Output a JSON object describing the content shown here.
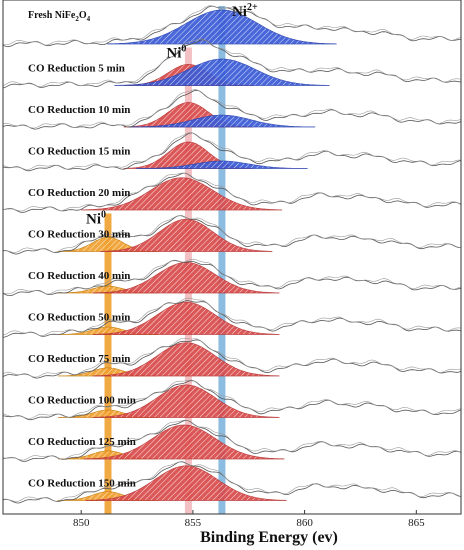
{
  "chart_data": {
    "type": "line",
    "xlabel": "Binding Energy (ev)",
    "xlim": [
      846.5,
      867
    ],
    "xticks": [
      850,
      855,
      860,
      865
    ],
    "xtick_labels": [
      "850",
      "855",
      "860",
      "865"
    ],
    "markers": [
      {
        "name": "Ni0",
        "label_main": "Ni",
        "label_sup": "0",
        "x": 851.2,
        "color": "#f0a030",
        "from_spectrum": 5
      },
      {
        "name": "Ni0",
        "label_main": "Ni",
        "label_sup": "0",
        "x": 854.8,
        "color": "#f2b9bd",
        "from_spectrum": 1
      },
      {
        "name": "Ni2+",
        "label_main": "Ni",
        "label_sup": "2+",
        "x": 856.3,
        "color": "#7fb6de",
        "from_spectrum": 0
      }
    ],
    "colors": {
      "ni2": "#3a5bd6",
      "ni0": "#d94a4a",
      "niO": "#f0a030",
      "curve": "#555555"
    },
    "spectra": [
      {
        "label_main": "Fresh NiFe",
        "label_sub1": "2",
        "label_mid": "O",
        "label_sub2": "4",
        "label": "Fresh NiFe2O4",
        "peaks": [
          {
            "type": "ni2",
            "center": 856.3,
            "height": 1.0,
            "width": 1.6
          }
        ]
      },
      {
        "label": "CO Reduction 5 min",
        "peaks": [
          {
            "type": "ni0",
            "center": 854.8,
            "height": 0.62,
            "width": 0.9
          },
          {
            "type": "ni2",
            "center": 856.3,
            "height": 0.78,
            "width": 1.5
          }
        ]
      },
      {
        "label": "CO Reduction 10 min",
        "peaks": [
          {
            "type": "ni0",
            "center": 854.8,
            "height": 0.72,
            "width": 0.9
          },
          {
            "type": "ni2",
            "center": 856.3,
            "height": 0.35,
            "width": 1.3
          }
        ]
      },
      {
        "label": "CO Reduction 15 min",
        "peaks": [
          {
            "type": "ni0",
            "center": 854.8,
            "height": 0.78,
            "width": 0.9
          },
          {
            "type": "ni2",
            "center": 856.3,
            "height": 0.22,
            "width": 1.2
          }
        ]
      },
      {
        "label": "CO Reduction 20 min",
        "peaks": [
          {
            "type": "ni0",
            "center": 854.5,
            "height": 0.95,
            "width": 1.4
          }
        ]
      },
      {
        "label": "CO Reduction 30 min",
        "peaks": [
          {
            "type": "niO",
            "center": 851.2,
            "height": 0.42,
            "width": 0.7
          },
          {
            "type": "ni0",
            "center": 854.7,
            "height": 0.95,
            "width": 1.2
          }
        ]
      },
      {
        "label": "CO Reduction 40 min",
        "peaks": [
          {
            "type": "niO",
            "center": 851.2,
            "height": 0.2,
            "width": 0.7
          },
          {
            "type": "ni0",
            "center": 854.7,
            "height": 0.9,
            "width": 1.3
          }
        ]
      },
      {
        "label": "CO Reduction 50 min",
        "peaks": [
          {
            "type": "niO",
            "center": 851.2,
            "height": 0.22,
            "width": 0.7
          },
          {
            "type": "ni0",
            "center": 854.7,
            "height": 0.95,
            "width": 1.3
          }
        ]
      },
      {
        "label": "CO Reduction 75 min",
        "peaks": [
          {
            "type": "niO",
            "center": 851.2,
            "height": 0.24,
            "width": 0.7
          },
          {
            "type": "ni0",
            "center": 854.7,
            "height": 0.98,
            "width": 1.3
          }
        ]
      },
      {
        "label": "CO Reduction 100 min",
        "peaks": [
          {
            "type": "niO",
            "center": 851.2,
            "height": 0.22,
            "width": 0.7
          },
          {
            "type": "ni0",
            "center": 854.7,
            "height": 0.96,
            "width": 1.3
          }
        ]
      },
      {
        "label": "CO Reduction 125 min",
        "peaks": [
          {
            "type": "niO",
            "center": 851.2,
            "height": 0.24,
            "width": 0.7
          },
          {
            "type": "ni0",
            "center": 854.6,
            "height": 1.0,
            "width": 1.4
          }
        ]
      },
      {
        "label": "CO Reduction 150 min",
        "peaks": [
          {
            "type": "niO",
            "center": 851.2,
            "height": 0.26,
            "width": 0.7
          },
          {
            "type": "ni0",
            "center": 854.7,
            "height": 1.02,
            "width": 1.4
          }
        ]
      }
    ]
  }
}
